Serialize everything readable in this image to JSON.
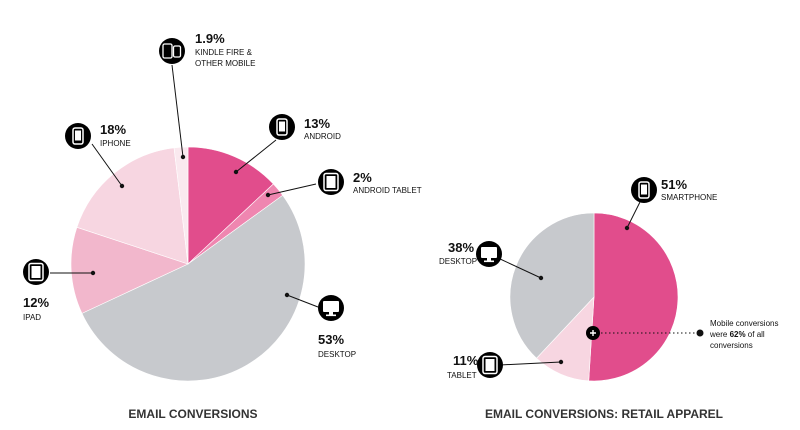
{
  "colors": {
    "pink": "#e14d8c",
    "pink_mid": "#ef86b0",
    "pink_light": "#f2b7cc",
    "pink_pale": "#f7d6e1",
    "pink_faint": "#fae9ef",
    "grey": "#c7c9cd",
    "icon_bg": "#000000"
  },
  "chart_data": [
    {
      "type": "pie",
      "title": "EMAIL CONVERSIONS",
      "slices": [
        {
          "label": "ANDROID",
          "value": 13,
          "value_label": "13%",
          "color": "#e14d8c",
          "icon": "smartphone-icon"
        },
        {
          "label": "ANDROID TABLET",
          "value": 2,
          "value_label": "2%",
          "color": "#ef86b0",
          "icon": "tablet-icon"
        },
        {
          "label": "DESKTOP",
          "value": 53,
          "value_label": "53%",
          "color": "#c7c9cd",
          "icon": "desktop-icon"
        },
        {
          "label": "IPAD",
          "value": 12,
          "value_label": "12%",
          "color": "#f2b7cc",
          "icon": "tablet-icon"
        },
        {
          "label": "IPHONE",
          "value": 18,
          "value_label": "18%",
          "color": "#f7d6e1",
          "icon": "smartphone-icon"
        },
        {
          "label": "KINDLE FIRE & OTHER MOBILE",
          "label_lines": [
            "KINDLE FIRE &",
            "OTHER MOBILE"
          ],
          "value": 1.9,
          "value_label": "1.9%",
          "color": "#fae9ef",
          "icon": "multi-device-icon"
        }
      ]
    },
    {
      "type": "pie",
      "title": "EMAIL CONVERSIONS: RETAIL APPAREL",
      "slices": [
        {
          "label": "SMARTPHONE",
          "value": 51,
          "value_label": "51%",
          "color": "#e14d8c",
          "icon": "smartphone-icon"
        },
        {
          "label": "TABLET",
          "value": 11,
          "value_label": "11%",
          "color": "#f7d6e1",
          "icon": "tablet-icon"
        },
        {
          "label": "DESKTOP",
          "value": 38,
          "value_label": "38%",
          "color": "#c7c9cd",
          "icon": "desktop-icon"
        }
      ],
      "annotation": {
        "text_before": "Mobile conversions",
        "text_were": "were ",
        "text_bold": "62%",
        "text_after": " of all",
        "text_end": "conversions",
        "icon": "plus-icon"
      }
    }
  ]
}
